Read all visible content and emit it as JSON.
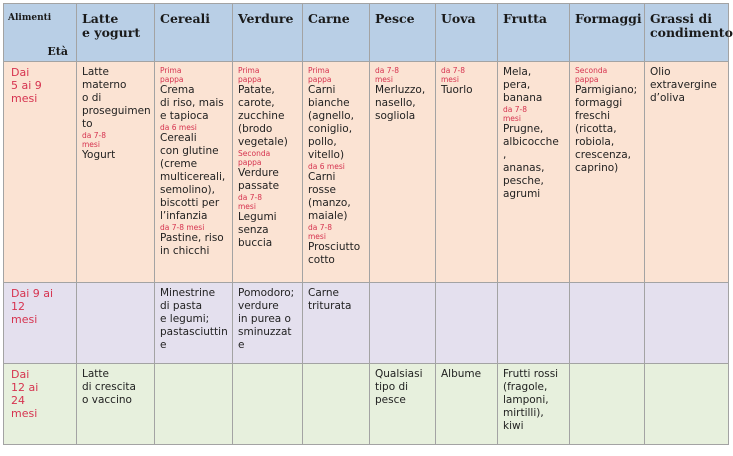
{
  "header": {
    "corner_top": "Alimenti",
    "corner_bottom": "Età",
    "columns": [
      "Latte\ne yogurt",
      "Cereali",
      "Verdure",
      "Carne",
      "Pesce",
      "Uova",
      "Frutta",
      "Formaggi",
      "Grassi di\ncondimento"
    ]
  },
  "rows": [
    {
      "age": "Dai\n5 ai 9\nmesi",
      "cells": [
        [
          {
            "k": "t",
            "v": "Latte\nmaterno\no di\nproseguimen\nto"
          },
          {
            "k": "s",
            "v": "da 7-8\nmesi"
          },
          {
            "k": "t",
            "v": "Yogurt"
          }
        ],
        [
          {
            "k": "s",
            "v": "Prima\npappa"
          },
          {
            "k": "t",
            "v": "Crema\ndi riso, mais\ne tapioca"
          },
          {
            "k": "s",
            "v": "da 6 mesi"
          },
          {
            "k": "t",
            "v": "Cereali\ncon glutine\n(creme\nmulticereali,\nsemolino),\nbiscotti per\nl’infanzia"
          },
          {
            "k": "s",
            "v": "da 7-8 mesi"
          },
          {
            "k": "t",
            "v": "Pastine, riso\nin chicchi"
          }
        ],
        [
          {
            "k": "s",
            "v": "Prima\npappa"
          },
          {
            "k": "t",
            "v": "Patate,\ncarote,\nzucchine\n(brodo\nvegetale)"
          },
          {
            "k": "s",
            "v": "Seconda\npappa"
          },
          {
            "k": "t",
            "v": "Verdure\npassate"
          },
          {
            "k": "s",
            "v": "da 7-8\nmesi"
          },
          {
            "k": "t",
            "v": "Legumi\nsenza\nbuccia"
          }
        ],
        [
          {
            "k": "s",
            "v": "Prima\npappa"
          },
          {
            "k": "t",
            "v": "Carni\nbianche\n(agnello,\nconiglio,\npollo,\nvitello)"
          },
          {
            "k": "s",
            "v": "da 6 mesi"
          },
          {
            "k": "t",
            "v": "Carni\nrosse\n(manzo,\nmaiale)"
          },
          {
            "k": "s",
            "v": "da 7-8\nmesi"
          },
          {
            "k": "t",
            "v": "Prosciutto\ncotto"
          }
        ],
        [
          {
            "k": "s",
            "v": "da 7-8\nmesi"
          },
          {
            "k": "t",
            "v": "Merluzzo,\nnasello,\nsogliola"
          }
        ],
        [
          {
            "k": "s",
            "v": "da 7-8\nmesi"
          },
          {
            "k": "t",
            "v": "Tuorlo"
          }
        ],
        [
          {
            "k": "t",
            "v": "Mela,\npera,\nbanana"
          },
          {
            "k": "s",
            "v": "da 7-8\nmesi"
          },
          {
            "k": "t",
            "v": "Prugne,\nalbicocche\n,\nananas,\npesche,\nagrumi"
          }
        ],
        [
          {
            "k": "s",
            "v": "Seconda\npappa"
          },
          {
            "k": "t",
            "v": "Parmigiano;\nformaggi\nfreschi\n(ricotta,\nrobiola,\ncrescenza,\ncaprino)"
          }
        ],
        [
          {
            "k": "t",
            "v": "Olio\nextravergine\nd’oliva"
          }
        ]
      ]
    },
    {
      "age": "Dai 9 ai\n12\nmesi",
      "cells": [
        [],
        [
          {
            "k": "t",
            "v": "Minestrine\ndi pasta\ne legumi;\npastasciuttin\ne"
          }
        ],
        [
          {
            "k": "t",
            "v": "Pomodoro;\nverdure\nin purea o\nsminuzzat\ne"
          }
        ],
        [
          {
            "k": "t",
            "v": "Carne\ntriturata"
          }
        ],
        [],
        [],
        [],
        [],
        []
      ]
    },
    {
      "age": "Dai\n12 ai\n24\nmesi",
      "cells": [
        [
          {
            "k": "t",
            "v": "Latte\ndi crescita\no vaccino"
          }
        ],
        [],
        [],
        [],
        [
          {
            "k": "t",
            "v": "Qualsiasi\ntipo di\npesce"
          }
        ],
        [
          {
            "k": "t",
            "v": "Albume"
          }
        ],
        [
          {
            "k": "t",
            "v": "Frutti rossi\n(fragole,\nlamponi,\nmirtilli),\nkiwi"
          }
        ],
        [],
        []
      ]
    }
  ]
}
